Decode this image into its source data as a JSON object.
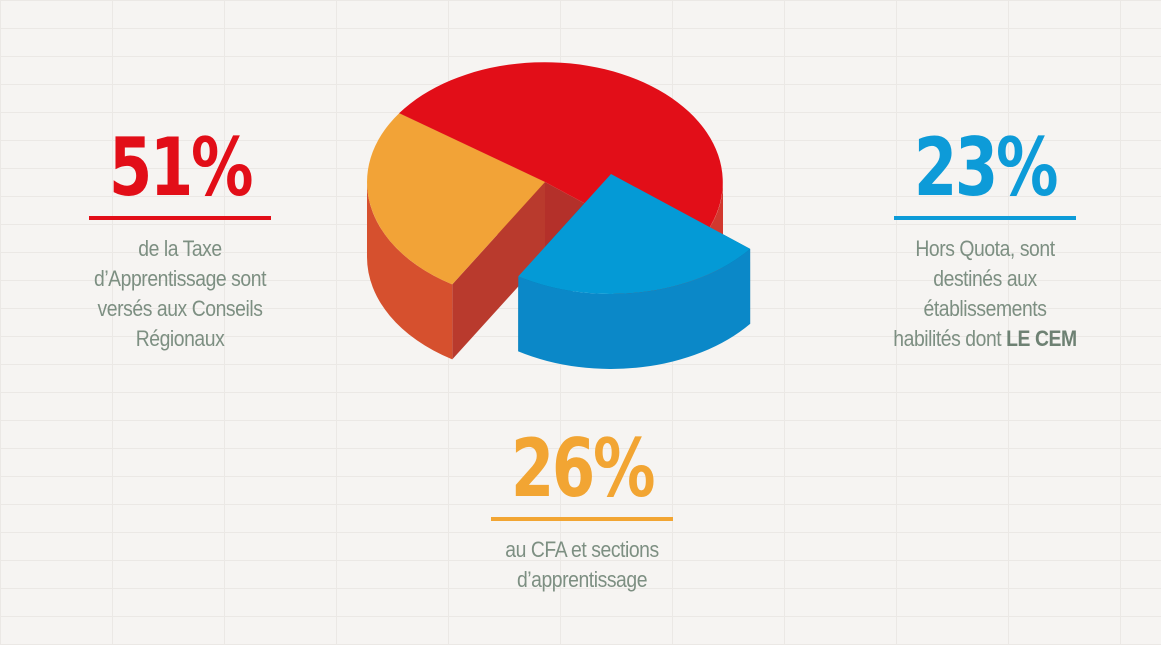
{
  "chart_data": {
    "type": "pie",
    "slices": [
      {
        "label": "de la Taxe d’Apprentissage sont versés aux Conseils Régionaux",
        "value": 51,
        "color": "#e20e18",
        "side_color": "#d2382e",
        "edge_color": "#b4302a"
      },
      {
        "label": "Hors Quota, sont destinés aux établissements habilités dont LE CEM",
        "value": 23,
        "color": "#049ad6",
        "side_color": "#0b88c8",
        "edge_color": "#0f6290"
      },
      {
        "label": "au CFA et sections d’apprentissage",
        "value": 26,
        "color": "#f2a337",
        "side_color": "#d6502e",
        "edge_color": "#b93a2d"
      }
    ]
  },
  "callouts": {
    "c51": {
      "percent": "51%",
      "lines": [
        "de la Taxe",
        "d’Apprentissage sont",
        "versés aux Conseils",
        "Régionaux"
      ]
    },
    "c23": {
      "percent": "23%",
      "lines": [
        "Hors Quota, sont",
        "destinés aux",
        "établissements"
      ],
      "last_line_prefix": "habilités dont ",
      "last_line_bold": "LE CEM"
    },
    "c26": {
      "percent": "26%",
      "lines": [
        "au CFA et sections",
        "d’apprentissage"
      ]
    }
  }
}
